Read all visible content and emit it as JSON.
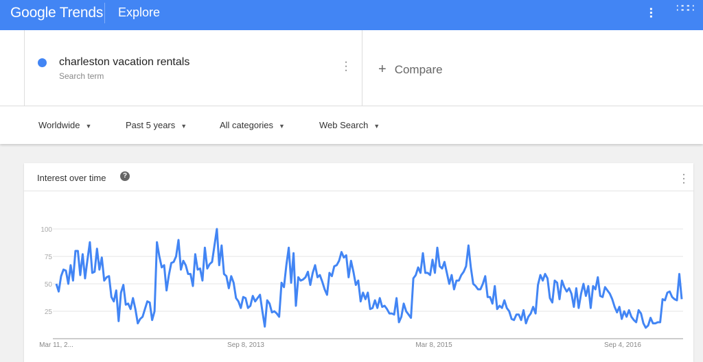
{
  "header": {
    "logo": "Google Trends",
    "section": "Explore",
    "share_icon": "share-icon",
    "apps_icon": "apps-grid-icon",
    "brand_color": "#4285f4"
  },
  "search": {
    "term": "charleston vacation rentals",
    "term_sub": "Search term",
    "term_color": "#4285f4",
    "compare": "Compare"
  },
  "filters": [
    {
      "label": "Worldwide"
    },
    {
      "label": "Past 5 years"
    },
    {
      "label": "All categories"
    },
    {
      "label": "Web Search"
    }
  ],
  "card": {
    "title": "Interest over time",
    "help": "?"
  },
  "chart_data": {
    "type": "line",
    "title": "",
    "xlabel": "",
    "ylabel": "",
    "ylim": [
      0,
      100
    ],
    "grid": true,
    "yticks": [
      25,
      50,
      75,
      100
    ],
    "xtick_labels": [
      "Mar 11, 2...",
      "Sep 8, 2013",
      "Mar 8, 2015",
      "Sep 4, 2016"
    ],
    "series": [
      {
        "color": "#4285f4",
        "values": [
          50,
          43,
          57,
          63,
          62,
          50,
          67,
          53,
          80,
          80,
          58,
          77,
          55,
          72,
          88,
          60,
          61,
          82,
          63,
          74,
          53,
          56,
          57,
          38,
          34,
          44,
          16,
          42,
          49,
          31,
          32,
          27,
          37,
          27,
          14,
          18,
          20,
          27,
          34,
          33,
          17,
          25,
          88,
          75,
          65,
          67,
          44,
          58,
          69,
          70,
          75,
          90,
          63,
          71,
          67,
          59,
          59,
          48,
          77,
          63,
          64,
          53,
          83,
          64,
          68,
          70,
          85,
          100,
          67,
          85,
          59,
          57,
          46,
          57,
          51,
          37,
          34,
          28,
          38,
          37,
          28,
          30,
          39,
          34,
          37,
          40,
          25,
          11,
          35,
          32,
          24,
          25,
          23,
          20,
          51,
          47,
          67,
          83,
          51,
          78,
          30,
          56,
          53,
          54,
          56,
          61,
          49,
          60,
          67,
          56,
          58,
          52,
          45,
          40,
          60,
          57,
          66,
          67,
          71,
          79,
          74,
          76,
          56,
          71,
          61,
          49,
          53,
          34,
          42,
          36,
          42,
          27,
          28,
          35,
          28,
          37,
          29,
          30,
          27,
          23,
          23,
          22,
          37,
          15,
          20,
          32,
          25,
          22,
          19,
          55,
          58,
          65,
          60,
          78,
          60,
          60,
          58,
          72,
          60,
          83,
          66,
          64,
          70,
          60,
          50,
          58,
          45,
          53,
          53,
          58,
          61,
          66,
          85,
          65,
          50,
          48,
          45,
          45,
          50,
          57,
          38,
          38,
          32,
          48,
          27,
          30,
          28,
          35,
          28,
          25,
          18,
          17,
          22,
          22,
          17,
          26,
          14,
          20,
          23,
          29,
          23,
          49,
          58,
          53,
          59,
          55,
          37,
          33,
          53,
          51,
          36,
          53,
          47,
          43,
          46,
          41,
          29,
          46,
          28,
          41,
          50,
          39,
          48,
          28,
          48,
          45,
          56,
          39,
          38,
          47,
          44,
          41,
          36,
          29,
          24,
          29,
          18,
          25,
          20,
          26,
          20,
          17,
          15,
          26,
          23,
          14,
          10,
          12,
          19,
          14,
          14,
          15,
          15,
          36,
          35,
          42,
          43,
          38,
          36,
          35,
          59,
          36
        ]
      }
    ]
  }
}
